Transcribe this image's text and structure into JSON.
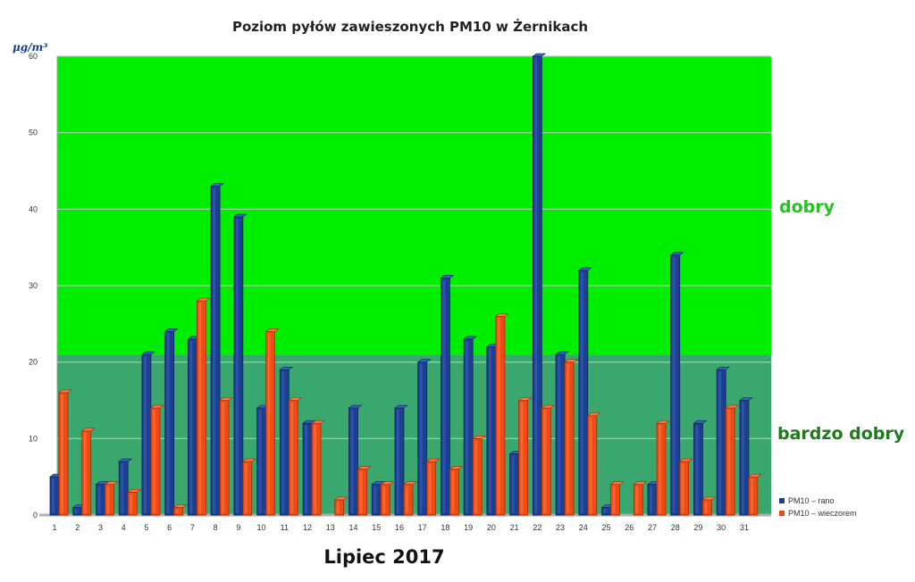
{
  "chart_data": {
    "type": "bar",
    "title": "Poziom pyłów zawieszonych PM10 w Żernikach",
    "ylabel": "μg/m³",
    "xlabel": "Lipiec 2017",
    "ylim": [
      0,
      60
    ],
    "yticks": [
      0,
      10,
      20,
      30,
      40,
      50,
      60
    ],
    "grid": true,
    "legend_position": "bottom-right",
    "categories": [
      "1",
      "2",
      "3",
      "4",
      "5",
      "6",
      "7",
      "8",
      "9",
      "10",
      "11",
      "12",
      "13",
      "14",
      "15",
      "16",
      "17",
      "18",
      "19",
      "20",
      "21",
      "22",
      "23",
      "24",
      "25",
      "26",
      "27",
      "28",
      "29",
      "30",
      "31"
    ],
    "series": [
      {
        "name": "PM10 – rano",
        "color": "#1c3f8f",
        "values": [
          5,
          1,
          4,
          7,
          21,
          24,
          23,
          43,
          39,
          14,
          19,
          12,
          0,
          14,
          4,
          14,
          20,
          31,
          23,
          22,
          8,
          60,
          21,
          32,
          1,
          0,
          4,
          34,
          12,
          19,
          15
        ]
      },
      {
        "name": "PM10 – wieczorem",
        "color": "#f04a14",
        "values": [
          16,
          11,
          4,
          3,
          14,
          1,
          28,
          15,
          7,
          24,
          15,
          12,
          2,
          6,
          4,
          4,
          7,
          6,
          10,
          26,
          15,
          14,
          20,
          13,
          4,
          4,
          12,
          7,
          2,
          14,
          5
        ]
      }
    ],
    "zones": [
      {
        "label": "bardzo dobry",
        "from": 0,
        "to": 21,
        "color": "#3aa86e"
      },
      {
        "label": "dobry",
        "from": 21,
        "to": 60,
        "color": "#00ee00"
      }
    ]
  }
}
